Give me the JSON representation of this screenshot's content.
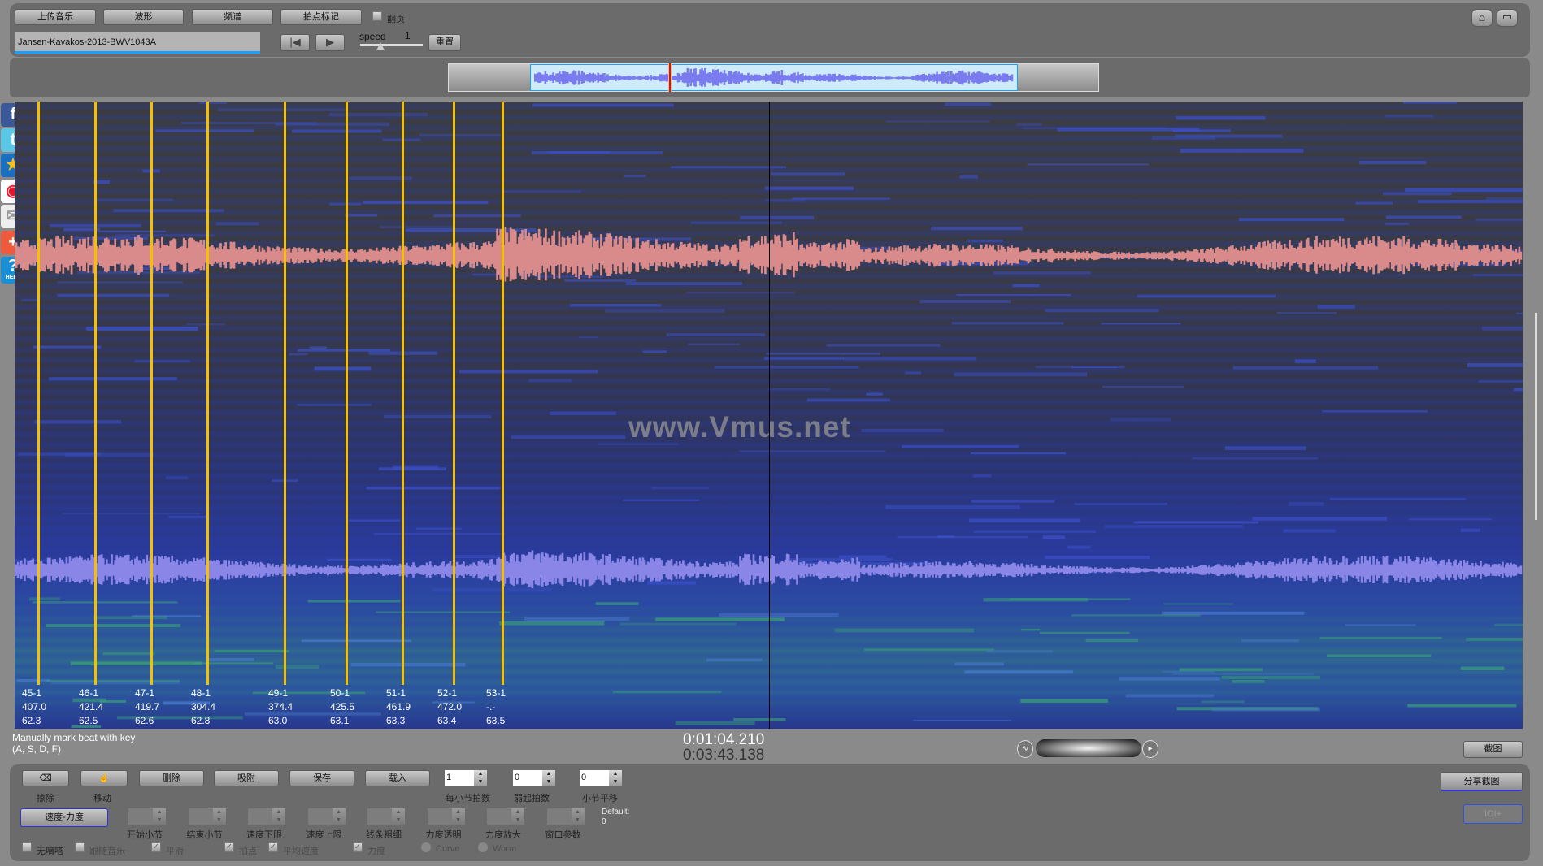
{
  "toolbar": {
    "upload": "上传音乐",
    "waveform": "波形",
    "spectrum": "频谱",
    "beat_mark": "拍点标记",
    "page_flip": "翻页",
    "filename": "Jansen-Kavakos-2013-BWV1043A",
    "speed_label": "speed",
    "speed_value": "1",
    "reset": "重置"
  },
  "icons": {
    "prev": "skip-back-icon",
    "play": "play-icon",
    "home": "home-icon",
    "fullscreen": "fullscreen-icon"
  },
  "social": [
    "facebook",
    "twitter",
    "qzone",
    "weibo",
    "email",
    "add",
    "help"
  ],
  "help_label": "HELP",
  "watermark": "www.Vmus.net",
  "beats": [
    {
      "label": "45-1",
      "tempo": "407.0",
      "time": "62.3"
    },
    {
      "label": "46-1",
      "tempo": "421.4",
      "time": "62.5"
    },
    {
      "label": "47-1",
      "tempo": "419.7",
      "time": "62.6"
    },
    {
      "label": "48-1",
      "tempo": "304.4",
      "time": "62.8"
    },
    {
      "label": "49-1",
      "tempo": "374.4",
      "time": "63.0"
    },
    {
      "label": "50-1",
      "tempo": "425.5",
      "time": "63.1"
    },
    {
      "label": "51-1",
      "tempo": "461.9",
      "time": "63.3"
    },
    {
      "label": "52-1",
      "tempo": "472.0",
      "time": "63.4"
    },
    {
      "label": "53-1",
      "tempo": "-.-",
      "time": "63.5"
    }
  ],
  "hint_line1": "Manually mark beat with key",
  "hint_line2": "(A, S, D, F)",
  "current_time": "0:01:04.210",
  "total_time": "0:03:43.138",
  "screenshot": "截图",
  "bottom": {
    "erase": "擦除",
    "move": "移动",
    "delete": "删除",
    "snap": "吸附",
    "save": "保存",
    "load": "载入",
    "beats_per_bar": {
      "label": "每小节拍数",
      "value": "1"
    },
    "pickup_beats": {
      "label": "弱起拍数",
      "value": "0"
    },
    "bar_offset": {
      "label": "小节平移",
      "value": "0"
    },
    "tempo_dynamics": "速度-力度",
    "params": [
      "开始小节",
      "结束小节",
      "速度下限",
      "速度上限",
      "线条粗细",
      "力度透明",
      "力度放大",
      "窗口参数"
    ],
    "default_label": "Default:",
    "default_value": "0",
    "checks": [
      {
        "label": "无嘀嗒",
        "checked": false,
        "enabled": true
      },
      {
        "label": "跟随音乐",
        "checked": false,
        "enabled": false
      },
      {
        "label": "平滑",
        "checked": true,
        "enabled": false
      },
      {
        "label": "拍点",
        "checked": true,
        "enabled": false
      },
      {
        "label": "平均速度",
        "checked": true,
        "enabled": false
      },
      {
        "label": "力度",
        "checked": true,
        "enabled": false
      }
    ],
    "radios": [
      "Curve",
      "Worm"
    ],
    "share": "分享截图",
    "ioi": "IOI+"
  },
  "colors": {
    "beat_line": "#f5c000",
    "upper_wave": "#d98a8a",
    "lower_wave": "#8a86e8",
    "overview_wave": "#7b7bf0",
    "cursor": "#e01010"
  }
}
